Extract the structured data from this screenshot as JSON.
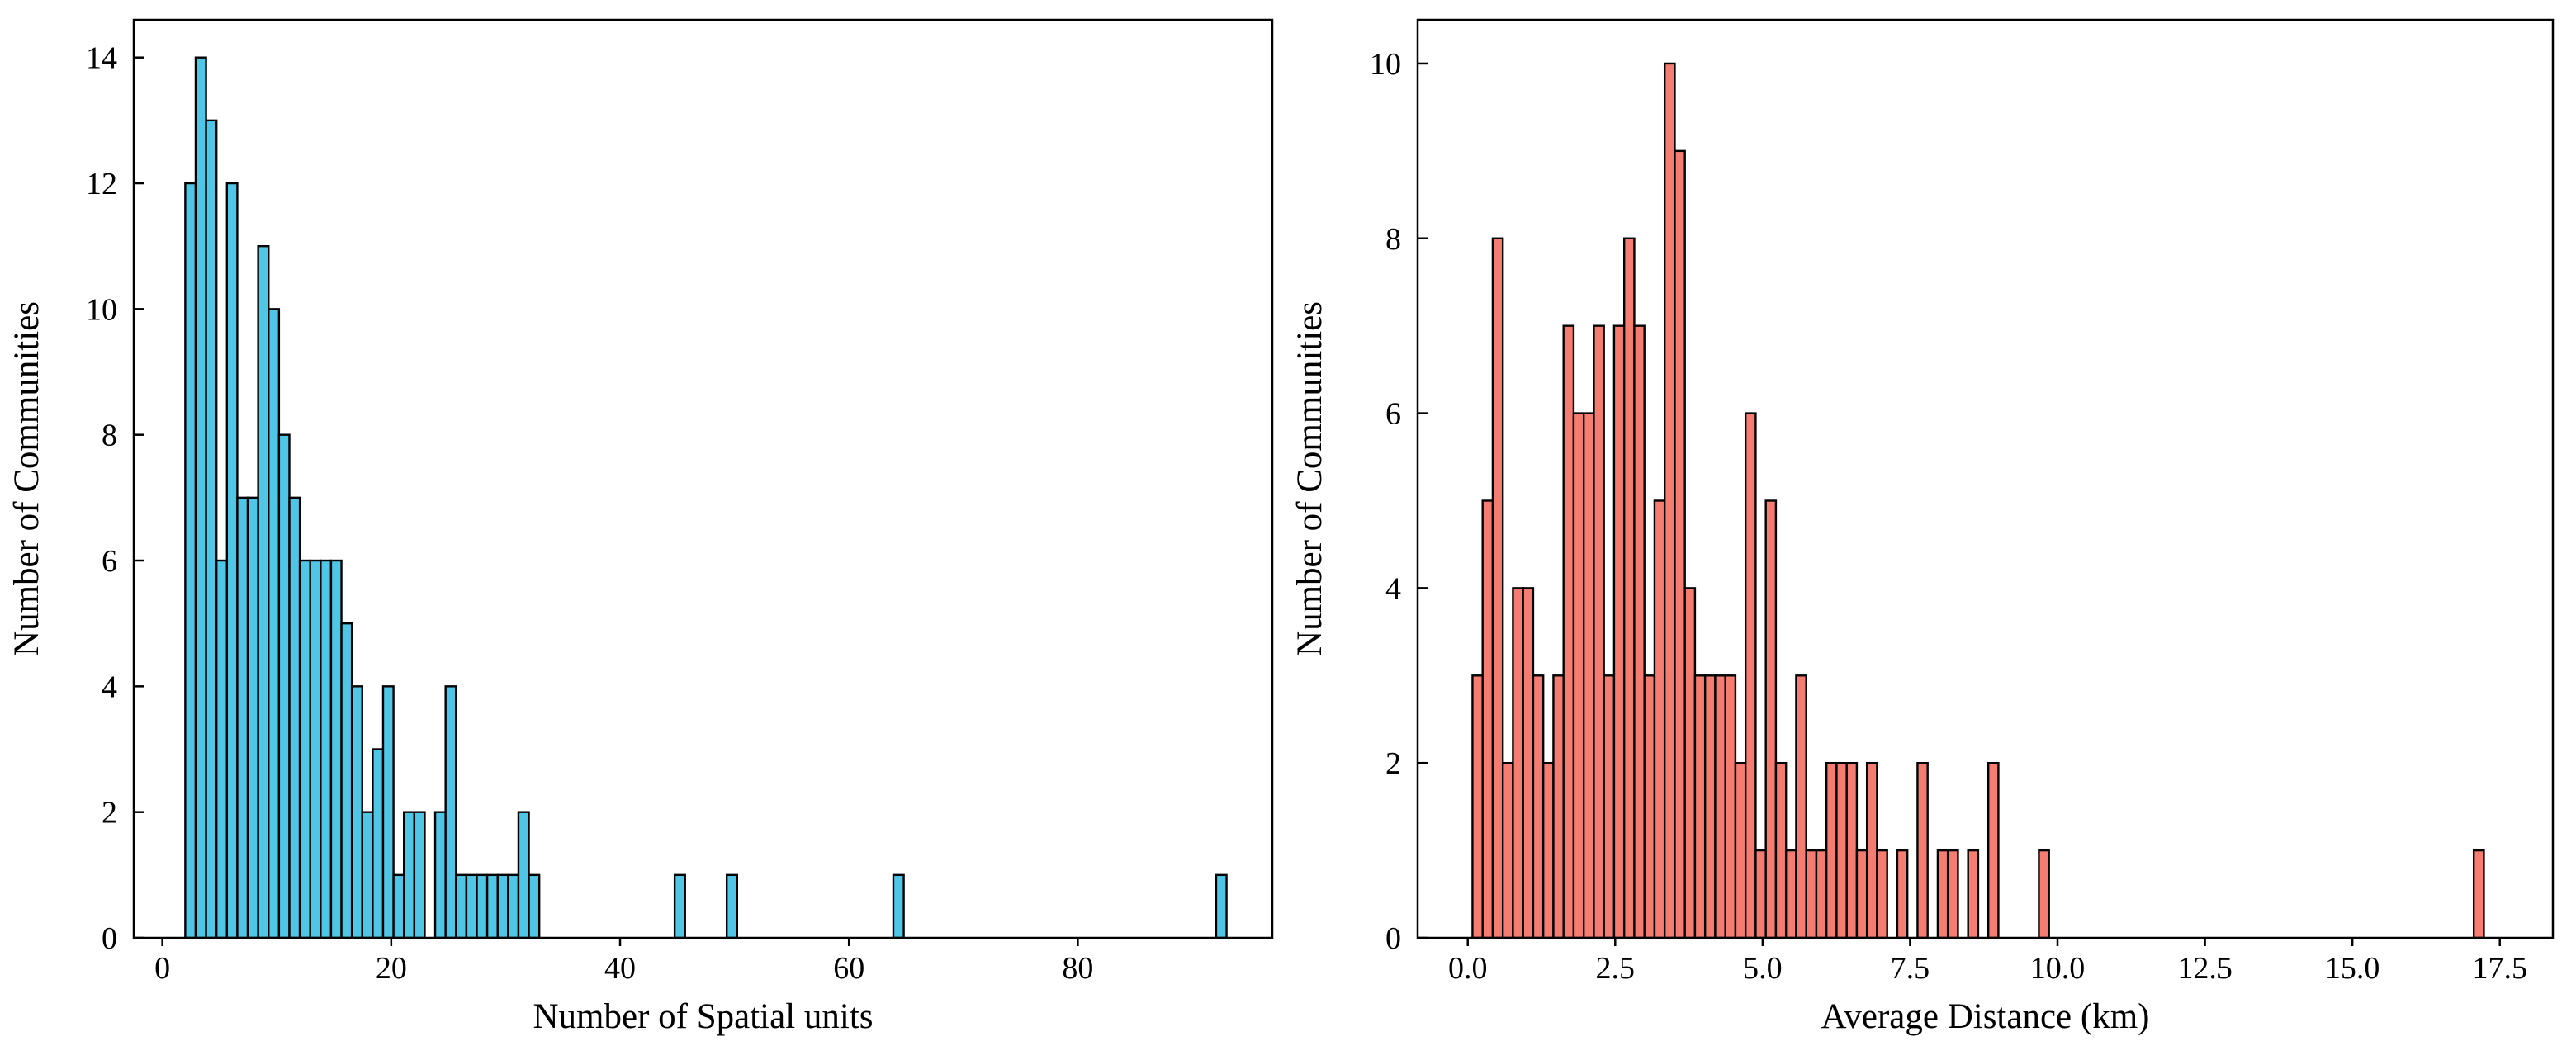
{
  "chart_data": [
    {
      "type": "bar",
      "xlabel": "Number of Spatial units",
      "ylabel": "Number of Communities",
      "bar_color": "#4fc6e6",
      "edge_color": "#000000",
      "xlim": [
        -2.5,
        97.0
      ],
      "ylim": [
        0,
        14.6
      ],
      "xticks": [
        0,
        20,
        40,
        60,
        80
      ],
      "xtick_labels": [
        "0",
        "20",
        "40",
        "60",
        "80"
      ],
      "yticks": [
        0,
        2,
        4,
        6,
        8,
        10,
        12,
        14
      ],
      "ytick_labels": [
        "0",
        "2",
        "4",
        "6",
        "8",
        "10",
        "12",
        "14"
      ],
      "bin_start": 2.0,
      "bin_width": 0.91,
      "values": [
        12,
        14,
        13,
        6,
        12,
        7,
        7,
        11,
        10,
        8,
        7,
        6,
        6,
        6,
        6,
        5,
        4,
        2,
        3,
        4,
        1,
        2,
        2,
        0,
        2,
        4,
        1,
        1,
        1,
        1,
        1,
        1,
        2,
        1,
        0,
        0,
        0,
        0,
        0,
        0,
        0,
        0,
        0,
        0,
        0,
        0,
        0,
        1,
        0,
        0,
        0,
        0,
        1,
        0,
        0,
        0,
        0,
        0,
        0,
        0,
        0,
        0,
        0,
        0,
        0,
        0,
        0,
        0,
        1,
        0,
        0,
        0,
        0,
        0,
        0,
        0,
        0,
        0,
        0,
        0,
        0,
        0,
        0,
        0,
        0,
        0,
        0,
        0,
        0,
        0,
        0,
        0,
        0,
        0,
        0,
        0,
        0,
        0,
        0,
        1
      ]
    },
    {
      "type": "bar",
      "xlabel": "Average Distance (km)",
      "ylabel": "Number of Communities",
      "bar_color": "#f47c70",
      "edge_color": "#000000",
      "xlim": [
        -0.85,
        18.4
      ],
      "ylim": [
        0,
        10.5
      ],
      "xticks": [
        0,
        2.5,
        5.0,
        7.5,
        10.0,
        12.5,
        15.0,
        17.5
      ],
      "xtick_labels": [
        "0.0",
        "2.5",
        "5.0",
        "7.5",
        "10.0",
        "12.5",
        "15.0",
        "17.5"
      ],
      "yticks": [
        0,
        2,
        4,
        6,
        8,
        10
      ],
      "ytick_labels": [
        "0",
        "2",
        "4",
        "6",
        "8",
        "10"
      ],
      "bin_start": 0.08,
      "bin_width": 0.1715,
      "values": [
        3,
        5,
        8,
        2,
        4,
        4,
        3,
        2,
        3,
        7,
        6,
        6,
        7,
        3,
        7,
        8,
        7,
        3,
        5,
        10,
        9,
        4,
        3,
        3,
        3,
        3,
        2,
        6,
        1,
        5,
        2,
        1,
        3,
        1,
        1,
        2,
        2,
        2,
        1,
        2,
        1,
        0,
        1,
        0,
        2,
        0,
        1,
        1,
        0,
        1,
        0,
        2,
        0,
        0,
        0,
        0,
        1,
        0,
        0,
        0,
        0,
        0,
        0,
        0,
        0,
        0,
        0,
        0,
        0,
        0,
        0,
        0,
        0,
        0,
        0,
        0,
        0,
        0,
        0,
        0,
        0,
        0,
        0,
        0,
        0,
        0,
        0,
        0,
        0,
        0,
        0,
        0,
        0,
        0,
        0,
        0,
        0,
        0,
        0,
        1
      ]
    }
  ]
}
